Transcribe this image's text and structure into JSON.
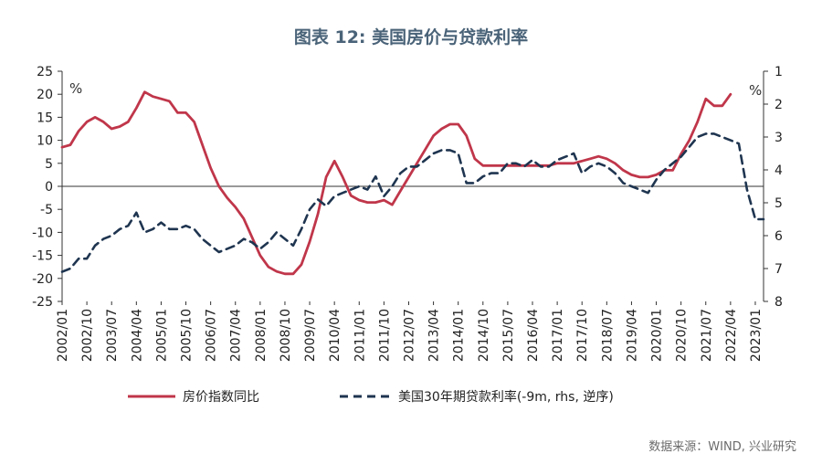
{
  "chart_data": {
    "type": "line",
    "title": "图表 12: 美国房价与贷款利率",
    "source": "数据来源：WIND, 兴业研究",
    "left_axis": {
      "unit": "%",
      "range": [
        -25,
        25
      ],
      "ticks": [
        "25",
        "20",
        "15",
        "10",
        "5",
        "0",
        "-5",
        "-10",
        "-15",
        "-20",
        "-25"
      ]
    },
    "right_axis": {
      "unit": "%",
      "range": [
        1,
        8
      ],
      "inverted": true,
      "ticks": [
        "1",
        "2",
        "3",
        "4",
        "5",
        "6",
        "7",
        "8"
      ]
    },
    "x_ticks": [
      "2002/01",
      "2002/10",
      "2003/07",
      "2004/04",
      "2005/01",
      "2005/10",
      "2006/07",
      "2007/04",
      "2008/01",
      "2008/10",
      "2009/07",
      "2010/04",
      "2011/01",
      "2011/10",
      "2012/07",
      "2013/04",
      "2014/01",
      "2014/10",
      "2015/07",
      "2016/04",
      "2017/01",
      "2017/10",
      "2018/07",
      "2019/04",
      "2020/01",
      "2020/10",
      "2021/07",
      "2022/04",
      "2023/01"
    ],
    "series": [
      {
        "name": "房价指数同比",
        "axis": "left",
        "color": "#c0364a",
        "style": "solid",
        "points": [
          [
            "2002/01",
            8.5
          ],
          [
            "2002/04",
            9
          ],
          [
            "2002/07",
            12
          ],
          [
            "2002/10",
            14
          ],
          [
            "2003/01",
            15
          ],
          [
            "2003/04",
            14
          ],
          [
            "2003/07",
            12.5
          ],
          [
            "2003/10",
            13
          ],
          [
            "2004/01",
            14
          ],
          [
            "2004/04",
            17
          ],
          [
            "2004/07",
            20.5
          ],
          [
            "2004/10",
            19.5
          ],
          [
            "2005/01",
            19
          ],
          [
            "2005/04",
            18.5
          ],
          [
            "2005/07",
            16
          ],
          [
            "2005/10",
            16
          ],
          [
            "2006/01",
            14
          ],
          [
            "2006/04",
            9
          ],
          [
            "2006/07",
            4
          ],
          [
            "2006/10",
            0
          ],
          [
            "2007/01",
            -2.5
          ],
          [
            "2007/04",
            -4.5
          ],
          [
            "2007/07",
            -7
          ],
          [
            "2007/10",
            -11
          ],
          [
            "2008/01",
            -15
          ],
          [
            "2008/04",
            -17.5
          ],
          [
            "2008/07",
            -18.5
          ],
          [
            "2008/10",
            -19
          ],
          [
            "2009/01",
            -19
          ],
          [
            "2009/04",
            -17
          ],
          [
            "2009/07",
            -12
          ],
          [
            "2009/10",
            -6
          ],
          [
            "2010/01",
            2
          ],
          [
            "2010/04",
            5.5
          ],
          [
            "2010/07",
            2
          ],
          [
            "2010/10",
            -2
          ],
          [
            "2011/01",
            -3
          ],
          [
            "2011/04",
            -3.5
          ],
          [
            "2011/07",
            -3.5
          ],
          [
            "2011/10",
            -3
          ],
          [
            "2012/01",
            -4
          ],
          [
            "2012/04",
            -1
          ],
          [
            "2012/07",
            2
          ],
          [
            "2012/10",
            5
          ],
          [
            "2013/01",
            8
          ],
          [
            "2013/04",
            11
          ],
          [
            "2013/07",
            12.5
          ],
          [
            "2013/10",
            13.5
          ],
          [
            "2014/01",
            13.5
          ],
          [
            "2014/04",
            11
          ],
          [
            "2014/07",
            6
          ],
          [
            "2014/10",
            4.5
          ],
          [
            "2015/01",
            4.5
          ],
          [
            "2015/04",
            4.5
          ],
          [
            "2015/07",
            4.5
          ],
          [
            "2015/10",
            4.5
          ],
          [
            "2016/01",
            4.5
          ],
          [
            "2016/04",
            4.5
          ],
          [
            "2016/07",
            4.5
          ],
          [
            "2016/10",
            4.5
          ],
          [
            "2017/01",
            5
          ],
          [
            "2017/04",
            5
          ],
          [
            "2017/07",
            5
          ],
          [
            "2017/10",
            5.5
          ],
          [
            "2018/01",
            6
          ],
          [
            "2018/04",
            6.5
          ],
          [
            "2018/07",
            6
          ],
          [
            "2018/10",
            5
          ],
          [
            "2019/01",
            3.5
          ],
          [
            "2019/04",
            2.5
          ],
          [
            "2019/07",
            2
          ],
          [
            "2019/10",
            2
          ],
          [
            "2020/01",
            2.5
          ],
          [
            "2020/04",
            3.5
          ],
          [
            "2020/07",
            3.5
          ],
          [
            "2020/10",
            7
          ],
          [
            "2021/01",
            10
          ],
          [
            "2021/04",
            14
          ],
          [
            "2021/07",
            19
          ],
          [
            "2021/10",
            17.5
          ],
          [
            "2022/01",
            17.5
          ],
          [
            "2022/04",
            20
          ]
        ]
      },
      {
        "name": "美国30年期贷款利率(-9m, rhs, 逆序)",
        "axis": "right",
        "color": "#1f3550",
        "style": "dashed",
        "points": [
          [
            "2002/01",
            7.1
          ],
          [
            "2002/04",
            7.0
          ],
          [
            "2002/07",
            6.7
          ],
          [
            "2002/10",
            6.7
          ],
          [
            "2003/01",
            6.3
          ],
          [
            "2003/04",
            6.1
          ],
          [
            "2003/07",
            6.0
          ],
          [
            "2003/10",
            5.8
          ],
          [
            "2004/01",
            5.7
          ],
          [
            "2004/04",
            5.3
          ],
          [
            "2004/07",
            5.9
          ],
          [
            "2004/10",
            5.8
          ],
          [
            "2005/01",
            5.6
          ],
          [
            "2005/04",
            5.8
          ],
          [
            "2005/07",
            5.8
          ],
          [
            "2005/10",
            5.7
          ],
          [
            "2006/01",
            5.8
          ],
          [
            "2006/04",
            6.1
          ],
          [
            "2006/07",
            6.3
          ],
          [
            "2006/10",
            6.5
          ],
          [
            "2007/01",
            6.4
          ],
          [
            "2007/04",
            6.3
          ],
          [
            "2007/07",
            6.1
          ],
          [
            "2007/10",
            6.2
          ],
          [
            "2008/01",
            6.4
          ],
          [
            "2008/04",
            6.2
          ],
          [
            "2008/07",
            5.9
          ],
          [
            "2008/10",
            6.1
          ],
          [
            "2009/01",
            6.3
          ],
          [
            "2009/04",
            5.8
          ],
          [
            "2009/07",
            5.2
          ],
          [
            "2009/10",
            4.9
          ],
          [
            "2010/01",
            5.1
          ],
          [
            "2010/04",
            4.8
          ],
          [
            "2010/07",
            4.7
          ],
          [
            "2010/10",
            4.6
          ],
          [
            "2011/01",
            4.5
          ],
          [
            "2011/04",
            4.6
          ],
          [
            "2011/07",
            4.2
          ],
          [
            "2011/10",
            4.8
          ],
          [
            "2012/01",
            4.5
          ],
          [
            "2012/04",
            4.1
          ],
          [
            "2012/07",
            3.9
          ],
          [
            "2012/10",
            3.9
          ],
          [
            "2013/01",
            3.7
          ],
          [
            "2013/04",
            3.5
          ],
          [
            "2013/07",
            3.4
          ],
          [
            "2013/10",
            3.4
          ],
          [
            "2014/01",
            3.5
          ],
          [
            "2014/04",
            4.4
          ],
          [
            "2014/07",
            4.4
          ],
          [
            "2014/10",
            4.2
          ],
          [
            "2015/01",
            4.1
          ],
          [
            "2015/04",
            4.1
          ],
          [
            "2015/07",
            3.8
          ],
          [
            "2015/10",
            3.8
          ],
          [
            "2016/01",
            3.9
          ],
          [
            "2016/04",
            3.7
          ],
          [
            "2016/07",
            3.9
          ],
          [
            "2016/10",
            3.9
          ],
          [
            "2017/01",
            3.7
          ],
          [
            "2017/04",
            3.6
          ],
          [
            "2017/07",
            3.5
          ],
          [
            "2017/10",
            4.1
          ],
          [
            "2018/01",
            3.9
          ],
          [
            "2018/04",
            3.8
          ],
          [
            "2018/07",
            3.9
          ],
          [
            "2018/10",
            4.1
          ],
          [
            "2019/01",
            4.4
          ],
          [
            "2019/04",
            4.5
          ],
          [
            "2019/07",
            4.6
          ],
          [
            "2019/10",
            4.7
          ],
          [
            "2020/01",
            4.3
          ],
          [
            "2020/04",
            4.0
          ],
          [
            "2020/07",
            3.8
          ],
          [
            "2020/10",
            3.6
          ],
          [
            "2021/01",
            3.3
          ],
          [
            "2021/04",
            3.0
          ],
          [
            "2021/07",
            2.9
          ],
          [
            "2021/10",
            2.9
          ],
          [
            "2022/01",
            3.0
          ],
          [
            "2022/04",
            3.1
          ],
          [
            "2022/07",
            3.2
          ],
          [
            "2022/10",
            4.6
          ],
          [
            "2023/01",
            5.5
          ],
          [
            "2023/04",
            5.5
          ]
        ]
      }
    ],
    "legend": {
      "placement": "bottom"
    },
    "grid": false
  }
}
